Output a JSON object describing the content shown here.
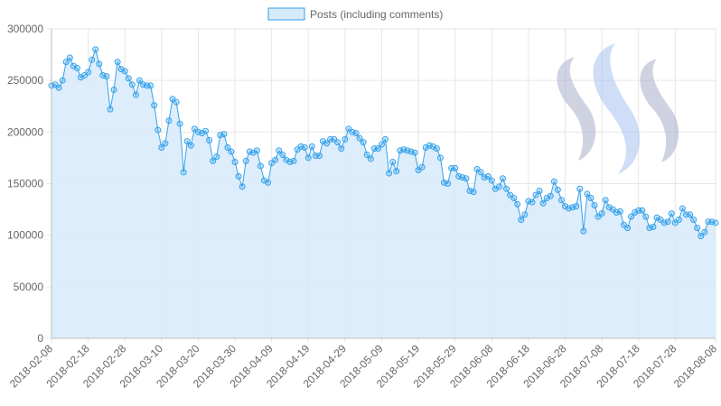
{
  "chart_data": {
    "type": "area",
    "title": "",
    "xlabel": "",
    "ylabel": "",
    "legend": {
      "placement": "top-center"
    },
    "grid": true,
    "ylim": [
      0,
      300000
    ],
    "y_ticks": [
      0,
      50000,
      100000,
      150000,
      200000,
      250000,
      300000
    ],
    "x_tick_labels": [
      "2018-02-08",
      "2018-02-18",
      "2018-02-28",
      "2018-03-10",
      "2018-03-20",
      "2018-03-30",
      "2018-04-09",
      "2018-04-19",
      "2018-04-29",
      "2018-05-09",
      "2018-05-19",
      "2018-05-29",
      "2018-06-08",
      "2018-06-18",
      "2018-06-28",
      "2018-07-08",
      "2018-07-18",
      "2018-07-28",
      "2018-08-08"
    ],
    "x_range": [
      "2018-02-08",
      "2018-08-08"
    ],
    "colors": {
      "line": "#36a2eb",
      "fill": "#d7eafa",
      "grid": "#e6e6e6"
    },
    "watermark": "steem-logo",
    "series": [
      {
        "name": "Posts (including comments)",
        "values": [
          245000,
          246000,
          243000,
          250000,
          268000,
          272000,
          264000,
          262000,
          253000,
          255000,
          258000,
          270000,
          280000,
          266000,
          255000,
          254000,
          222000,
          241000,
          268000,
          261000,
          259000,
          252000,
          246000,
          236000,
          250000,
          246000,
          245000,
          245000,
          226000,
          202000,
          185000,
          189000,
          211000,
          232000,
          229000,
          208000,
          161000,
          191000,
          187000,
          203000,
          200000,
          199000,
          201000,
          192000,
          172000,
          176000,
          197000,
          198000,
          185000,
          181000,
          171000,
          157000,
          147000,
          172000,
          181000,
          180000,
          182000,
          167000,
          153000,
          151000,
          170000,
          173000,
          182000,
          178000,
          173000,
          171000,
          172000,
          183000,
          186000,
          185000,
          175000,
          186000,
          177000,
          177000,
          191000,
          189000,
          193000,
          193000,
          190000,
          184000,
          193000,
          203000,
          200000,
          199000,
          194000,
          190000,
          178000,
          174000,
          184000,
          184000,
          188000,
          193000,
          160000,
          171000,
          162000,
          182000,
          183000,
          182000,
          181000,
          180000,
          163000,
          166000,
          185000,
          187000,
          186000,
          184000,
          175000,
          151000,
          150000,
          165000,
          165000,
          157000,
          156000,
          155000,
          143000,
          142000,
          164000,
          161000,
          156000,
          157000,
          153000,
          145000,
          147000,
          155000,
          145000,
          139000,
          136000,
          130000,
          115000,
          120000,
          133000,
          132000,
          139000,
          143000,
          131000,
          136000,
          138000,
          152000,
          144000,
          134000,
          128000,
          126000,
          127000,
          128000,
          145000,
          104000,
          140000,
          136000,
          129000,
          118000,
          121000,
          134000,
          127000,
          125000,
          122000,
          123000,
          110000,
          107000,
          118000,
          122000,
          124000,
          124000,
          118000,
          107000,
          108000,
          117000,
          115000,
          112000,
          113000,
          121000,
          112000,
          115000,
          126000,
          120000,
          120000,
          115000,
          107000,
          99000,
          103000,
          113000,
          113000,
          112000
        ]
      }
    ]
  }
}
